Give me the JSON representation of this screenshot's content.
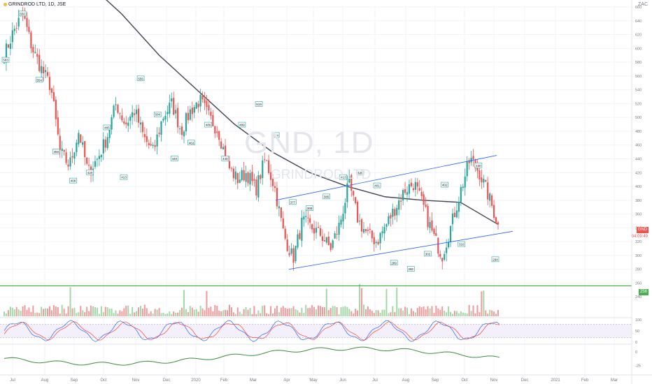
{
  "header": {
    "title": "GRINDROD LTD, 1D, JSE",
    "currency": "ZAC"
  },
  "watermark": {
    "symbol": "GND, 1D",
    "name": "GRINDROD LTD"
  },
  "last_price": {
    "symbol": "GND",
    "value": "345",
    "countdown": "04:09:49"
  },
  "support_label": "256",
  "colors": {
    "up": "#26a69a",
    "down": "#ef5350",
    "ma": "#434651",
    "channel": "#2962ff",
    "support": "#4caf50",
    "stoch_k": "#2962ff",
    "stoch_d": "#f44336",
    "momentum": "#388e3c"
  },
  "chart_data": [
    {
      "type": "candlestick",
      "title": "GRINDROD LTD, 1D, JSE",
      "price_axis": {
        "ylim": [
          220,
          660
        ],
        "ticks": [
          "660",
          "640",
          "620",
          "600",
          "580",
          "560",
          "540",
          "520",
          "500",
          "480",
          "460",
          "440",
          "420",
          "400",
          "380",
          "360",
          "340",
          "320",
          "300",
          "280",
          "260",
          "240"
        ]
      },
      "time_axis": {
        "labels": [
          "Jul",
          "Aug",
          "Sep",
          "Oct",
          "Nov",
          "Dec",
          "2020",
          "Feb",
          "Mar",
          "Apr",
          "May",
          "Jun",
          "Jul",
          "Aug",
          "Sep",
          "Oct",
          "Nov",
          "Dec",
          "2021",
          "Feb",
          "Mar"
        ]
      },
      "close_path": [
        [
          "Jul",
          590
        ],
        [
          "Jul",
          625
        ],
        [
          "Jul",
          650
        ],
        [
          "Jul",
          600
        ],
        [
          "Aug",
          570
        ],
        [
          "Aug",
          545
        ],
        [
          "Aug",
          450
        ],
        [
          "Aug",
          430
        ],
        [
          "Sep",
          480
        ],
        [
          "Sep",
          420
        ],
        [
          "Sep",
          440
        ],
        [
          "Oct",
          470
        ],
        [
          "Oct",
          520
        ],
        [
          "Oct",
          490
        ],
        [
          "Nov",
          510
        ],
        [
          "Nov",
          470
        ],
        [
          "Nov",
          450
        ],
        [
          "Dec",
          500
        ],
        [
          "Dec",
          520
        ],
        [
          "Dec",
          480
        ],
        [
          "2020",
          510
        ],
        [
          "2020",
          525
        ],
        [
          "2020",
          500
        ],
        [
          "Feb",
          480
        ],
        [
          "Feb",
          430
        ],
        [
          "Feb",
          410
        ],
        [
          "Mar",
          420
        ],
        [
          "Mar",
          395
        ],
        [
          "Mar",
          440
        ],
        [
          "Mar",
          400
        ],
        [
          "Apr",
          330
        ],
        [
          "Apr",
          295
        ],
        [
          "Apr",
          350
        ],
        [
          "May",
          340
        ],
        [
          "May",
          330
        ],
        [
          "May",
          310
        ],
        [
          "Jun",
          345
        ],
        [
          "Jun",
          405
        ],
        [
          "Jun",
          350
        ],
        [
          "Jul",
          330
        ],
        [
          "Jul",
          320
        ],
        [
          "Jul",
          345
        ],
        [
          "Aug",
          370
        ],
        [
          "Aug",
          395
        ],
        [
          "Aug",
          405
        ],
        [
          "Sep",
          370
        ],
        [
          "Sep",
          330
        ],
        [
          "Sep",
          300
        ],
        [
          "Oct",
          345
        ],
        [
          "Oct",
          395
        ],
        [
          "Oct",
          440
        ],
        [
          "Oct",
          420
        ],
        [
          "Nov",
          385
        ],
        [
          "Nov",
          345
        ]
      ],
      "pivot_labels": [
        "583",
        "650",
        "554",
        "450",
        "408",
        "420",
        "485",
        "413",
        "556",
        "504",
        "440",
        "463",
        "489",
        "440",
        "489",
        "519",
        "474",
        "377",
        "368",
        "385",
        "413",
        "420",
        "401",
        "289",
        "280",
        "302",
        "402",
        "316",
        "430",
        "294"
      ],
      "moving_average": {
        "values": [
          700,
          650,
          590,
          540,
          490,
          450,
          420,
          400,
          385,
          380,
          377,
          345
        ]
      },
      "channel": {
        "upper": [
          [
            380,
            "Apr"
          ],
          [
            445,
            "Nov"
          ]
        ],
        "lower": [
          [
            280,
            "Apr"
          ],
          [
            335,
            "Nov"
          ]
        ]
      },
      "support_line": 256,
      "last_value": 345
    },
    {
      "type": "line",
      "name": "stochastic",
      "ylim": [
        0,
        100
      ],
      "ticks": [
        "100",
        "50",
        "0"
      ],
      "levels": [
        80,
        20
      ]
    },
    {
      "type": "line",
      "name": "momentum",
      "ticks": [
        "0",
        "-25"
      ]
    }
  ]
}
